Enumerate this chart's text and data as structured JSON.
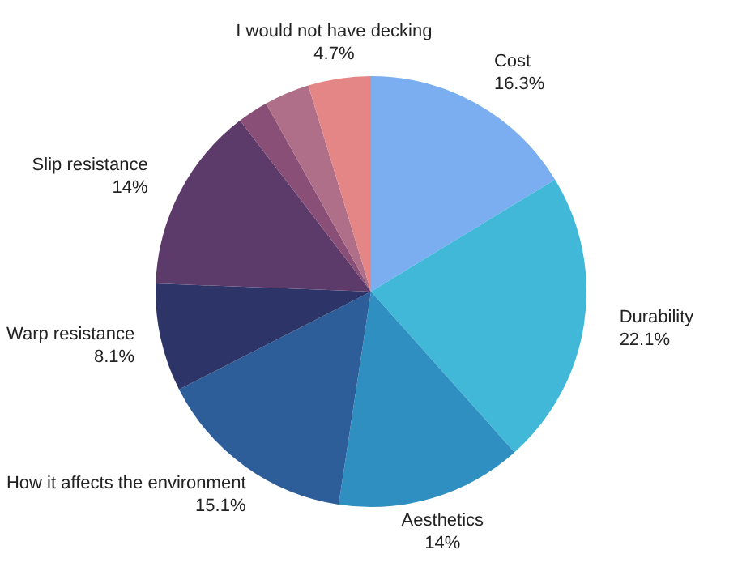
{
  "chart_data": {
    "type": "pie",
    "categories": [
      "Cost",
      "Durability",
      "Aesthetics",
      "How it affects the environment",
      "Warp resistance",
      "Slip resistance",
      null,
      null,
      "I would not have decking"
    ],
    "values": [
      16.3,
      22.1,
      14,
      15.1,
      8.1,
      14,
      2.3,
      3.4,
      4.7
    ],
    "value_labels": [
      "16.3%",
      "22.1%",
      "14%",
      "15.1%",
      "8.1%",
      "14%",
      null,
      null,
      "4.7%"
    ],
    "colors": [
      "#7aaef0",
      "#41b8d8",
      "#2e8fc0",
      "#2e5e9a",
      "#2d3468",
      "#5c3a6a",
      "#8a4f76",
      "#b06f88",
      "#e48686"
    ],
    "legend": false
  }
}
